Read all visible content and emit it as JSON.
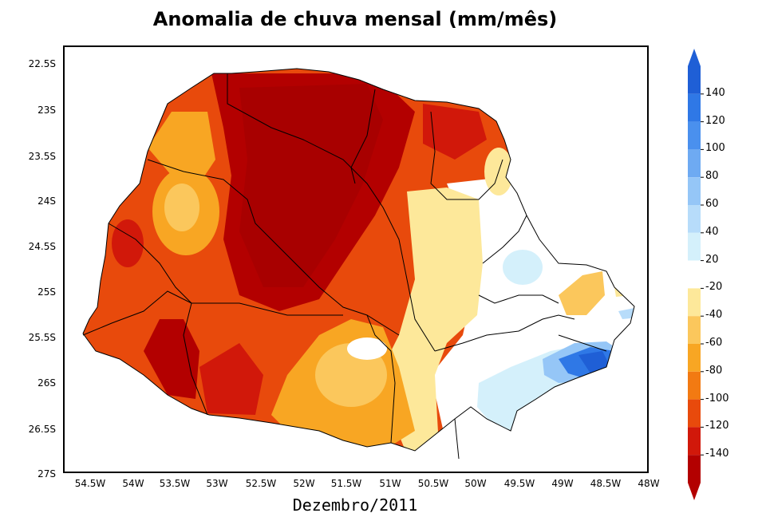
{
  "title": "Anomalia de chuva mensal (mm/mês)",
  "subtitle": "Dezembro/2011",
  "y_ticks": [
    "22.5S",
    "23S",
    "23.5S",
    "24S",
    "24.5S",
    "25S",
    "25.5S",
    "26S",
    "26.5S",
    "27S"
  ],
  "x_ticks": [
    "54.5W",
    "54W",
    "53.5W",
    "53W",
    "52.5W",
    "52W",
    "51.5W",
    "51W",
    "50.5W",
    "50W",
    "49.5W",
    "49W",
    "48.5W",
    "48W"
  ],
  "colorbar": {
    "levels": [
      "140",
      "120",
      "100",
      "80",
      "60",
      "40",
      "20",
      "-20",
      "-40",
      "-60",
      "-80",
      "-100",
      "-120",
      "-140"
    ],
    "colors": {
      "pos_140": "#1f5fd6",
      "pos_120": "#2f78e6",
      "pos_100": "#4a90ee",
      "pos_80": "#6eaaf2",
      "pos_60": "#95c6f7",
      "pos_40": "#b7dcfa",
      "pos_20": "#d4f0fb",
      "neutral": "#ffffff",
      "neg_20": "#fde89a",
      "neg_40": "#fbc75c",
      "neg_60": "#f8a623",
      "neg_80": "#f27a12",
      "neg_100": "#e84a0c",
      "neg_120": "#d1180a",
      "neg_140": "#b30000"
    }
  }
}
